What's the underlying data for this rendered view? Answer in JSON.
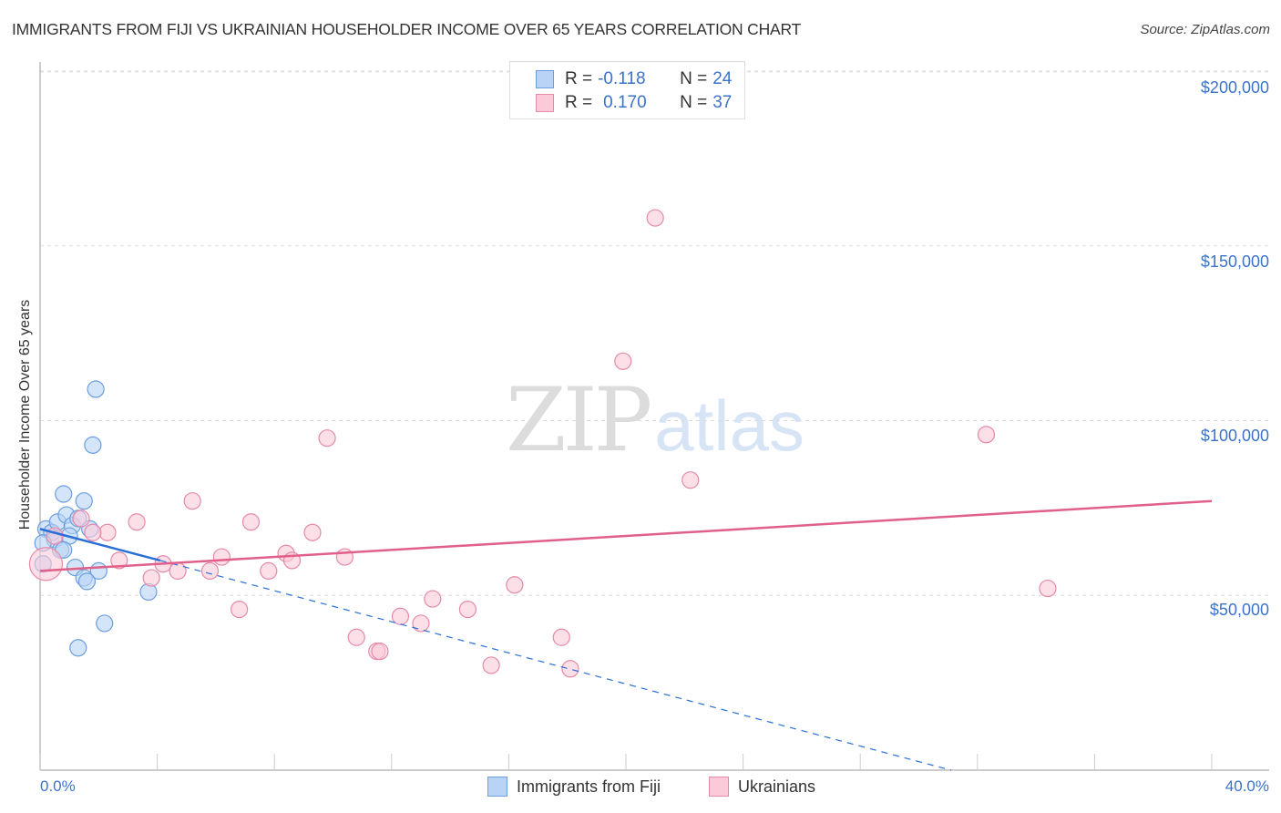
{
  "header": {
    "title": "IMMIGRANTS FROM FIJI VS UKRAINIAN HOUSEHOLDER INCOME OVER 65 YEARS CORRELATION CHART",
    "source": "Source: ZipAtlas.com"
  },
  "legend_top": {
    "rows": [
      {
        "r_label": "R =",
        "r_value": "-0.118",
        "n_label": "N =",
        "n_value": "24",
        "color": "#b8d3f5"
      },
      {
        "r_label": "R =",
        "r_value": "0.170",
        "n_label": "N =",
        "n_value": "37",
        "color": "#fbc9d8"
      }
    ]
  },
  "axes": {
    "y_label": "Householder Income Over 65 years",
    "y_ticks": [
      "$200,000",
      "$150,000",
      "$100,000",
      "$50,000"
    ],
    "x_min_label": "0.0%",
    "x_max_label": "40.0%"
  },
  "legend_bottom": {
    "items": [
      {
        "label": "Immigrants from Fiji",
        "color": "#b8d3f5"
      },
      {
        "label": "Ukrainians",
        "color": "#fbc9d8"
      }
    ]
  },
  "watermark": {
    "zip": "ZIP",
    "atlas": "atlas"
  },
  "colors": {
    "blue_fill": "#b8d3f5",
    "blue_stroke": "#6d9ee0",
    "blue_line": "#2a6fd6",
    "pink_fill": "#fbc9d8",
    "pink_stroke": "#e58aa8",
    "pink_line": "#e0608a",
    "tick_label": "#3b73c9"
  },
  "chart_data": {
    "type": "scatter",
    "title": "IMMIGRANTS FROM FIJI VS UKRAINIAN HOUSEHOLDER INCOME OVER 65 YEARS CORRELATION CHART",
    "xlabel": "",
    "ylabel": "Householder Income Over 65 years",
    "xlim": [
      0,
      40
    ],
    "ylim": [
      0,
      210000
    ],
    "y_ticks": [
      50000,
      100000,
      150000,
      200000
    ],
    "x_tick_labels": [
      "0.0%",
      "40.0%"
    ],
    "grid": true,
    "legend_position": "bottom",
    "series": [
      {
        "name": "Immigrants from Fiji",
        "r": -0.118,
        "n": 24,
        "points": [
          [
            1.9,
            109000
          ],
          [
            1.8,
            93000
          ],
          [
            0.8,
            79000
          ],
          [
            1.5,
            77000
          ],
          [
            0.2,
            69000
          ],
          [
            0.4,
            68000
          ],
          [
            0.6,
            71000
          ],
          [
            0.9,
            73000
          ],
          [
            1.1,
            70000
          ],
          [
            1.3,
            72000
          ],
          [
            1.7,
            69000
          ],
          [
            0.5,
            66000
          ],
          [
            1.0,
            67000
          ],
          [
            0.7,
            63000
          ],
          [
            0.8,
            63000
          ],
          [
            1.2,
            58000
          ],
          [
            2.0,
            57000
          ],
          [
            1.5,
            55000
          ],
          [
            1.6,
            54000
          ],
          [
            3.7,
            51000
          ],
          [
            2.2,
            42000
          ],
          [
            1.3,
            35000
          ],
          [
            0.1,
            59000
          ],
          [
            0.1,
            65000
          ]
        ],
        "trend": {
          "x": [
            0,
            4.1
          ],
          "y": [
            69000,
            60000
          ],
          "dashed_extension_to": [
            31.1,
            0
          ]
        }
      },
      {
        "name": "Ukrainians",
        "r": 0.17,
        "n": 37,
        "points": [
          [
            21.0,
            158000
          ],
          [
            19.9,
            117000
          ],
          [
            32.3,
            96000
          ],
          [
            9.8,
            95000
          ],
          [
            22.2,
            83000
          ],
          [
            5.2,
            77000
          ],
          [
            3.3,
            71000
          ],
          [
            7.2,
            71000
          ],
          [
            2.3,
            68000
          ],
          [
            1.8,
            68000
          ],
          [
            9.3,
            68000
          ],
          [
            1.4,
            72000
          ],
          [
            2.7,
            60000
          ],
          [
            6.2,
            61000
          ],
          [
            8.4,
            62000
          ],
          [
            8.6,
            60000
          ],
          [
            10.4,
            61000
          ],
          [
            4.2,
            59000
          ],
          [
            7.8,
            57000
          ],
          [
            5.8,
            57000
          ],
          [
            4.7,
            57000
          ],
          [
            3.8,
            55000
          ],
          [
            16.2,
            53000
          ],
          [
            34.4,
            52000
          ],
          [
            13.4,
            49000
          ],
          [
            6.8,
            46000
          ],
          [
            14.6,
            46000
          ],
          [
            12.3,
            44000
          ],
          [
            13.0,
            42000
          ],
          [
            10.8,
            38000
          ],
          [
            17.8,
            38000
          ],
          [
            11.5,
            34000
          ],
          [
            11.6,
            34000
          ],
          [
            15.4,
            30000
          ],
          [
            18.1,
            29000
          ],
          [
            0.2,
            59000
          ],
          [
            0.5,
            67000
          ]
        ],
        "trend": {
          "x": [
            0,
            40
          ],
          "y": [
            57000,
            77000
          ]
        }
      }
    ]
  }
}
